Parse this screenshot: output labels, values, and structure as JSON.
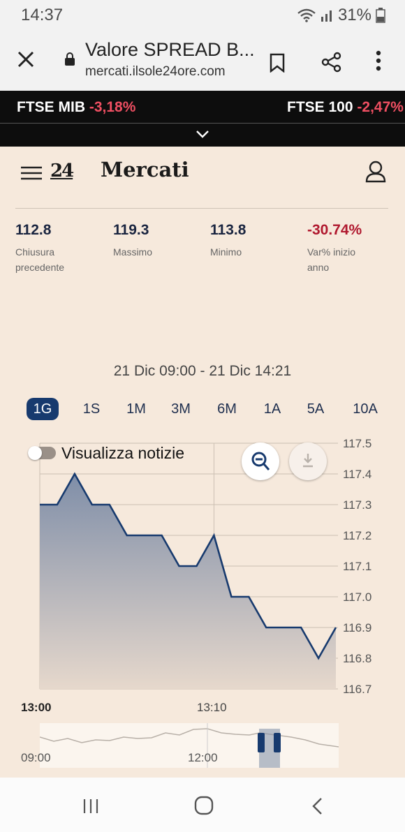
{
  "status_bar": {
    "time": "14:37",
    "battery": "31%"
  },
  "browser": {
    "title": "Valore SPREAD B...",
    "url": "mercati.ilsole24ore.com",
    "icons": [
      "close-icon",
      "lock-icon",
      "bookmark-icon",
      "share-icon",
      "more-icon"
    ]
  },
  "ticker": [
    {
      "name": "FTSE MIB",
      "change": "-3,18%"
    },
    {
      "name": "FTSE 100",
      "change": "-2,47%"
    }
  ],
  "header": {
    "logo": "24",
    "brand": "Mercati"
  },
  "stats": [
    {
      "value": "112.8",
      "label1": "Chiusura",
      "label2": "precedente"
    },
    {
      "value": "119.3",
      "label1": "Massimo",
      "label2": ""
    },
    {
      "value": "113.8",
      "label1": "Minimo",
      "label2": ""
    },
    {
      "value": "-30.74%",
      "label1": "Var% inizio",
      "label2": "anno"
    }
  ],
  "date_range": "21 Dic 09:00 - 21 Dic 14:21",
  "ranges": [
    "1G",
    "1S",
    "1M",
    "3M",
    "6M",
    "1A",
    "5A",
    "10A"
  ],
  "active_range": "1G",
  "news_toggle": {
    "label": "Visualizza notizie",
    "on": false
  },
  "colors": {
    "accent": "#173a6e",
    "negative": "#ef4f62",
    "background": "#f6e9dc"
  },
  "chart_data": {
    "type": "area",
    "x": [
      "13:00",
      "13:01",
      "13:02",
      "13:03",
      "13:04",
      "13:05",
      "13:06",
      "13:07",
      "13:08",
      "13:09",
      "13:10",
      "13:11",
      "13:12",
      "13:13",
      "13:14",
      "13:15",
      "13:16",
      "13:17"
    ],
    "values": [
      117.3,
      117.3,
      117.4,
      117.3,
      117.3,
      117.2,
      117.2,
      117.2,
      117.1,
      117.1,
      117.2,
      117.0,
      117.0,
      116.9,
      116.9,
      116.9,
      116.8,
      116.9
    ],
    "ylim": [
      116.7,
      117.5
    ],
    "y_ticks": [
      "117.5",
      "117.4",
      "117.3",
      "117.2",
      "117.1",
      "117.0",
      "116.9",
      "116.8",
      "116.7"
    ],
    "x_tick_labels": [
      {
        "label": "13:00",
        "bold": true
      },
      {
        "label": "13:10",
        "bold": false
      }
    ],
    "navigator_labels": [
      "09:00",
      "12:00"
    ],
    "grid": true
  }
}
